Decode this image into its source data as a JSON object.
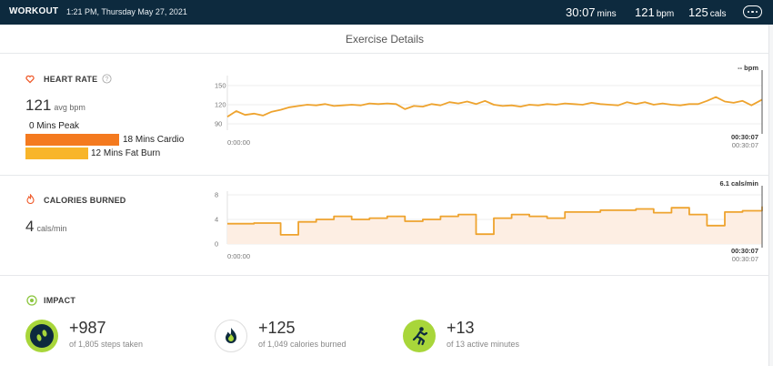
{
  "header": {
    "title": "WORKOUT",
    "datetime": "1:21 PM, Thursday May 27, 2021",
    "duration_value": "30:07",
    "duration_unit": "mins",
    "bpm_value": "121",
    "bpm_unit": "bpm",
    "cals_value": "125",
    "cals_unit": "cals",
    "menu_icon": "ellipsis-icon"
  },
  "card_title": "Exercise Details",
  "heart_rate": {
    "label": "HEART RATE",
    "icon": "heart-icon",
    "info_icon": "info-icon",
    "avg_value": "121",
    "avg_unit": "avg bpm",
    "zones": [
      {
        "label": "0 Mins Peak",
        "minutes": 0,
        "color": "#e23b1f"
      },
      {
        "label": "18 Mins Cardio",
        "minutes": 18,
        "color": "#f47a1f"
      },
      {
        "label": "12 Mins Fat Burn",
        "minutes": 12,
        "color": "#f8b52a"
      }
    ],
    "chart_readout": "-- bpm",
    "y_ticks": [
      "150",
      "120",
      "90"
    ],
    "x_start": "0:00:00",
    "x_end_current": "00:30:07",
    "x_end_total": "00:30:07"
  },
  "calories": {
    "label": "CALORIES BURNED",
    "icon": "flame-icon",
    "rate_value": "4",
    "rate_unit": "cals/min",
    "chart_readout": "6.1 cals/min",
    "y_ticks": [
      "8",
      "4",
      "0"
    ],
    "x_start": "0:00:00",
    "x_end_current": "00:30:07",
    "x_end_total": "00:30:07"
  },
  "impact": {
    "label": "IMPACT",
    "icon": "target-icon",
    "items": [
      {
        "value": "+987",
        "sub": "of 1,805 steps taken",
        "icon": "footprints-icon",
        "color": "#a8d63a"
      },
      {
        "value": "+125",
        "sub": "of 1,049 calories burned",
        "icon": "flame-icon",
        "color": "#ffffff"
      },
      {
        "value": "+13",
        "sub": "of 13 active minutes",
        "icon": "runner-icon",
        "color": "#a8d63a"
      }
    ]
  },
  "chart_data": [
    {
      "type": "line",
      "series": [
        {
          "x": [
            0,
            0.5,
            1,
            1.5,
            2,
            2.5,
            3,
            3.5,
            4,
            4.5,
            5,
            5.5,
            6,
            6.5,
            7,
            7.5,
            8,
            8.5,
            9,
            9.5,
            10,
            10.5,
            11,
            11.5,
            12,
            12.5,
            13,
            13.5,
            14,
            14.5,
            15,
            15.5,
            16,
            16.5,
            17,
            17.5,
            18,
            18.5,
            19,
            19.5,
            20,
            20.5,
            21,
            21.5,
            22,
            22.5,
            23,
            23.5,
            24,
            24.5,
            25,
            25.5,
            26,
            26.5,
            27,
            27.5,
            28,
            28.5,
            29,
            29.5,
            30.1
          ],
          "values": [
            101,
            110,
            104,
            106,
            103,
            109,
            112,
            116,
            118,
            120,
            119,
            121,
            118,
            119,
            120,
            119,
            122,
            121,
            122,
            121,
            113,
            118,
            117,
            121,
            119,
            124,
            122,
            125,
            121,
            126,
            120,
            118,
            119,
            117,
            120,
            119,
            121,
            120,
            122,
            121,
            120,
            123,
            121,
            120,
            119,
            124,
            121,
            124,
            120,
            122,
            120,
            119,
            121,
            121,
            126,
            132,
            125,
            123,
            126,
            119,
            128
          ]
        }
      ],
      "x_unit": "minutes",
      "ylim": [
        80,
        160
      ],
      "y_ticks": [
        150,
        120,
        90
      ]
    },
    {
      "type": "area",
      "series": [
        {
          "x": [
            0,
            1.5,
            3,
            4,
            5,
            6,
            7,
            8,
            9,
            10,
            11,
            12,
            13,
            14,
            15,
            16,
            17,
            18,
            19,
            20,
            21,
            22,
            23,
            24,
            25,
            26,
            27,
            28,
            29,
            30.1
          ],
          "values": [
            3.3,
            3.4,
            1.5,
            3.6,
            4.0,
            4.5,
            4.0,
            4.2,
            4.5,
            3.7,
            4.0,
            4.5,
            4.8,
            1.6,
            4.2,
            4.8,
            4.5,
            4.2,
            5.2,
            5.2,
            5.5,
            5.5,
            5.7,
            5.1,
            5.9,
            4.8,
            3.0,
            5.2,
            5.4,
            6.1
          ]
        }
      ],
      "x_unit": "minutes",
      "ylim": [
        0,
        8
      ],
      "y_ticks": [
        8,
        4,
        0
      ]
    }
  ]
}
